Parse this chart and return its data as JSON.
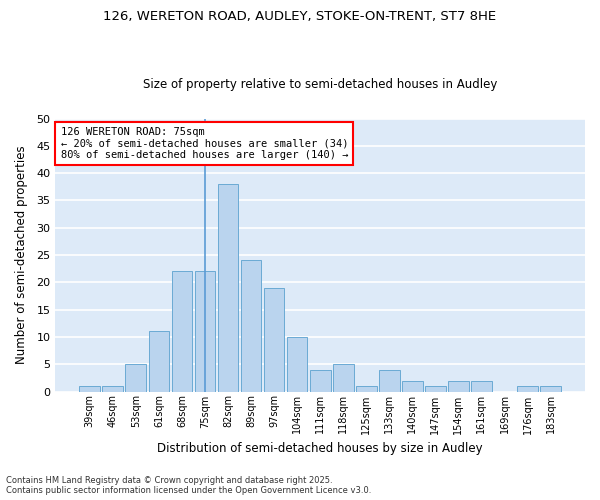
{
  "title1": "126, WERETON ROAD, AUDLEY, STOKE-ON-TRENT, ST7 8HE",
  "title2": "Size of property relative to semi-detached houses in Audley",
  "xlabel": "Distribution of semi-detached houses by size in Audley",
  "ylabel": "Number of semi-detached properties",
  "categories": [
    "39sqm",
    "46sqm",
    "53sqm",
    "61sqm",
    "68sqm",
    "75sqm",
    "82sqm",
    "89sqm",
    "97sqm",
    "104sqm",
    "111sqm",
    "118sqm",
    "125sqm",
    "133sqm",
    "140sqm",
    "147sqm",
    "154sqm",
    "161sqm",
    "169sqm",
    "176sqm",
    "183sqm"
  ],
  "values": [
    1,
    1,
    5,
    11,
    22,
    22,
    38,
    24,
    19,
    10,
    4,
    5,
    1,
    4,
    2,
    1,
    2,
    2,
    0,
    1,
    1
  ],
  "bar_color": "#bad4ee",
  "bar_edge_color": "#6aaad4",
  "ylim": [
    0,
    50
  ],
  "yticks": [
    0,
    5,
    10,
    15,
    20,
    25,
    30,
    35,
    40,
    45,
    50
  ],
  "bg_color": "#ddeaf8",
  "grid_color": "#ffffff",
  "annotation_title": "126 WERETON ROAD: 75sqm",
  "annotation_line1": "← 20% of semi-detached houses are smaller (34)",
  "annotation_line2": "80% of semi-detached houses are larger (140) →",
  "footer1": "Contains HM Land Registry data © Crown copyright and database right 2025.",
  "footer2": "Contains public sector information licensed under the Open Government Licence v3.0.",
  "property_bar_index": 5
}
